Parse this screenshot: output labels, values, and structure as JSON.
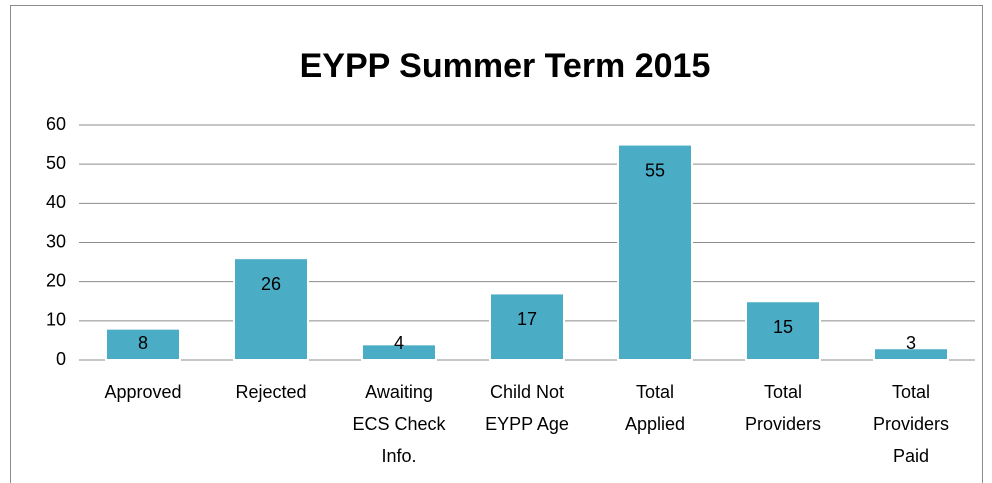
{
  "chart_data": {
    "type": "bar",
    "title": "EYPP Summer Term 2015",
    "categories": [
      "Approved",
      "Rejected",
      "Awaiting ECS Check Info.",
      "Child Not EYPP Age",
      "Total Applied",
      "Total Providers",
      "Total Providers Paid"
    ],
    "values": [
      8,
      26,
      4,
      17,
      55,
      15,
      3
    ],
    "color": "#4bacc6",
    "ylim": [
      0,
      60
    ],
    "yticks": [
      0,
      10,
      20,
      30,
      40,
      50,
      60
    ],
    "grid": true
  }
}
